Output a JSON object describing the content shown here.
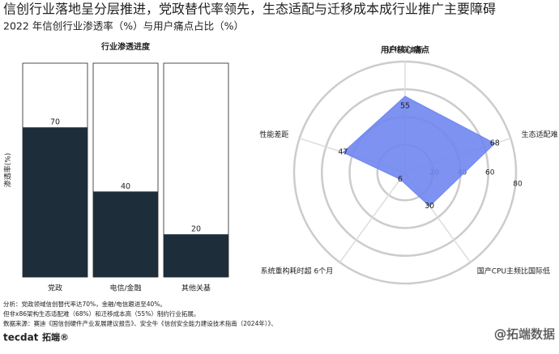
{
  "title": "信创行业落地呈分层推进，党政替代率领先，生态适配与迁移成本成行业推广主要障碍",
  "subtitle": "2022 年信创行业渗透率（%）与用户痛点占比（%）",
  "notes": [
    "分析：党政领域信创替代率达70%，金融/电信跟进至40%。",
    "但非x86架构生态适配难（68%）和迁移成本高（55%）制约行业拓展。",
    "数据来源：赛迪《国信创硬件产业发展建议报告》、安全牛《信创安全能力建设技术指南（2024年）》、"
  ],
  "logo": [
    "tecdat",
    "拓端®"
  ],
  "watermark": "@拓端数据",
  "chart_data": [
    {
      "type": "bar",
      "title": "行业渗透进度",
      "y_label": "渗透率(%)",
      "categories": [
        "党政",
        "电信/金融",
        "其他关基"
      ],
      "values": [
        70,
        40,
        20
      ],
      "color": "#1d2e3a",
      "ylim": [
        0,
        100
      ]
    },
    {
      "type": "radar",
      "title": "用户核心痛点",
      "categories": [
        "迁移成本高",
        "生态适配难",
        "国产CPU主频比国际低",
        "系统重构耗时超 6个月",
        "性能差距"
      ],
      "values": [
        55,
        68,
        30,
        6,
        47
      ],
      "color": "#6f86f0",
      "rlim": [
        0,
        80
      ],
      "rticks": [
        20,
        40,
        60,
        80
      ]
    }
  ]
}
